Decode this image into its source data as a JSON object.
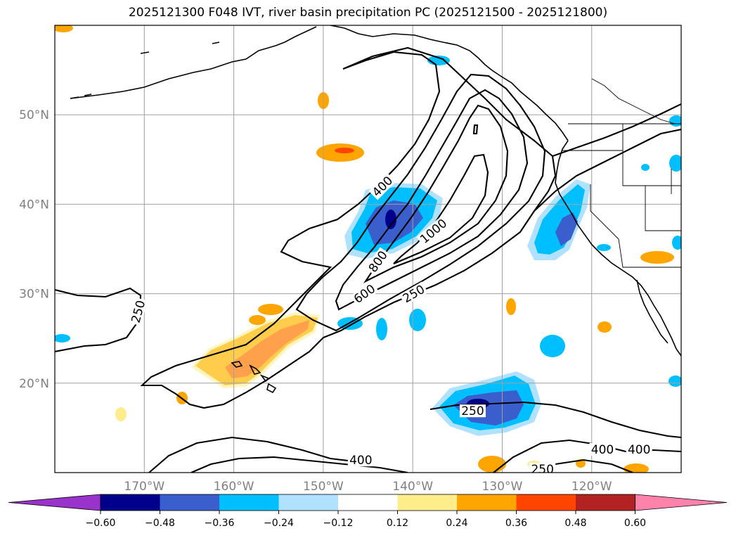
{
  "chart_data": {
    "type": "map-contour",
    "title": "2025121300 F048 IVT, river basin precipitation PC (2025121500 - 2025121800)",
    "lat_ticks": [
      {
        "value": 50,
        "label": "50°N"
      },
      {
        "value": 40,
        "label": "40°N"
      },
      {
        "value": 30,
        "label": "30°N"
      },
      {
        "value": 20,
        "label": "20°N"
      }
    ],
    "lon_ticks": [
      {
        "value": -170,
        "label": "170°W"
      },
      {
        "value": -160,
        "label": "160°W"
      },
      {
        "value": -150,
        "label": "150°W"
      },
      {
        "value": -140,
        "label": "140°W"
      },
      {
        "value": -130,
        "label": "130°W"
      },
      {
        "value": -120,
        "label": "120°W"
      }
    ],
    "ivt_contour_levels": [
      250,
      400,
      600,
      800,
      1000
    ],
    "contour_labels": [
      {
        "text": "250",
        "lon": -170.7,
        "lat": 28.0,
        "angle": -75
      },
      {
        "text": "400",
        "lon": -143.4,
        "lat": 42.0,
        "angle": -45
      },
      {
        "text": "1000",
        "lon": -137.7,
        "lat": 37.0,
        "angle": -40
      },
      {
        "text": "800",
        "lon": -143.9,
        "lat": 33.6,
        "angle": -55
      },
      {
        "text": "600",
        "lon": -145.4,
        "lat": 30.0,
        "angle": -35
      },
      {
        "text": "250",
        "lon": -139.9,
        "lat": 30.0,
        "angle": -30
      },
      {
        "text": "250",
        "lon": -133.3,
        "lat": 16.9,
        "angle": 0
      },
      {
        "text": "400",
        "lon": -118.8,
        "lat": 12.6,
        "angle": 0
      },
      {
        "text": "400",
        "lon": -114.7,
        "lat": 12.6,
        "angle": 0
      },
      {
        "text": "400",
        "lon": -145.8,
        "lat": 11.4,
        "angle": 0
      },
      {
        "text": "250",
        "lon": -125.5,
        "lat": 10.4,
        "angle": 0
      }
    ],
    "colorbar": {
      "ticks": [
        "−0.60",
        "−0.48",
        "−0.36",
        "−0.24",
        "−0.12",
        "0.12",
        "0.24",
        "0.36",
        "0.48",
        "0.60"
      ],
      "colors": [
        "#9933cc",
        "#00008b",
        "#3a5fcd",
        "#00bfff",
        "#b0e2ff",
        "#ffffff",
        "#ffec8b",
        "#ffa500",
        "#ff4500",
        "#b22222",
        "#ff82ab"
      ],
      "extend": "both"
    },
    "grid": true
  }
}
